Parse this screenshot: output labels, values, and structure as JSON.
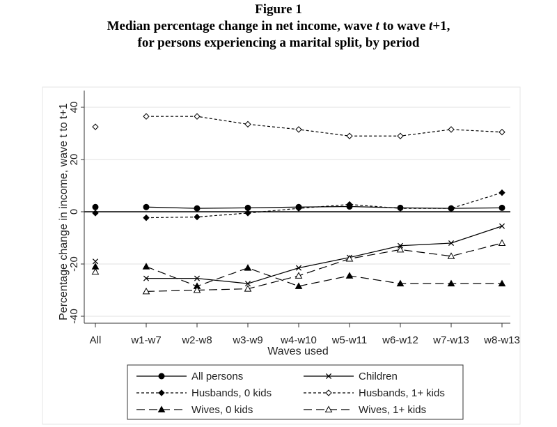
{
  "figure_label": "Figure 1",
  "title_line2_prefix": "Median percentage change in net income, wave ",
  "title_line2_t": "t",
  "title_line2_mid": " to wave ",
  "title_line2_t2": "t",
  "title_line2_suffix": "+1,",
  "title_line3": "for persons experiencing a marital split, by period",
  "chart_data": {
    "type": "line",
    "title": "Median percentage change in net income, wave t to wave t+1, for persons experiencing a marital split, by period",
    "xlabel": "Waves used",
    "ylabel": "Percentage change in income, wave t to t+1",
    "categories": [
      "All",
      "w1-w7",
      "w2-w8",
      "w3-w9",
      "w4-w10",
      "w5-w11",
      "w6-w12",
      "w7-w13",
      "w8-w13"
    ],
    "ylim": [
      -42,
      42
    ],
    "yticks": [
      -40,
      -20,
      0,
      20,
      40
    ],
    "grid": true,
    "legend_position": "bottom",
    "series": [
      {
        "name": "All persons",
        "style": "solid",
        "marker": "circle",
        "values": [
          1.8,
          1.8,
          1.3,
          1.5,
          1.8,
          2.0,
          1.5,
          1.3,
          1.5
        ]
      },
      {
        "name": "Children",
        "style": "solid",
        "marker": "x",
        "values": [
          -19,
          -25.5,
          -25.5,
          -27.5,
          -21.5,
          -17.5,
          -13,
          -12,
          -5.5
        ]
      },
      {
        "name": "Husbands, 0 kids",
        "style": "short-dash",
        "marker": "diamond",
        "values": [
          -0.5,
          -2.3,
          -2.0,
          -0.5,
          1.3,
          2.8,
          1.3,
          1.3,
          7.3
        ]
      },
      {
        "name": "Husbands, 1+ kids",
        "style": "short-dash",
        "marker": "diamond-open",
        "values": [
          32.5,
          36.5,
          36.5,
          33.5,
          31.5,
          29.0,
          29.0,
          31.5,
          30.5
        ]
      },
      {
        "name": "Wives, 0 kids",
        "style": "long-dash",
        "marker": "triangle",
        "values": [
          -21,
          -21,
          -28.5,
          -21.5,
          -28.5,
          -24.5,
          -27.5,
          -27.5,
          -27.5
        ]
      },
      {
        "name": "Wives, 1+ kids",
        "style": "long-dash",
        "marker": "triangle-open",
        "values": [
          -23,
          -30.5,
          -30,
          -29.5,
          -24.5,
          -18,
          -14.5,
          -17,
          -12
        ]
      }
    ]
  }
}
